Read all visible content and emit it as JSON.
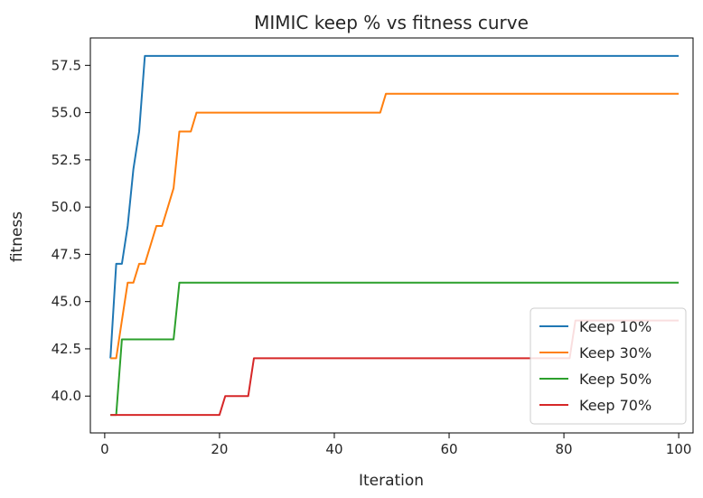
{
  "chart_data": {
    "type": "line",
    "title": "MIMIC keep % vs fitness curve",
    "xlabel": "Iteration",
    "ylabel": "fitness",
    "xlim": [
      -2.5,
      102.5
    ],
    "ylim": [
      38.05,
      58.95
    ],
    "xticks": [
      0,
      20,
      40,
      60,
      80,
      100
    ],
    "yticks": [
      40.0,
      42.5,
      45.0,
      47.5,
      50.0,
      52.5,
      55.0,
      57.5
    ],
    "ytick_labels": [
      "40.0",
      "42.5",
      "45.0",
      "47.5",
      "50.0",
      "52.5",
      "55.0",
      "57.5"
    ],
    "grid": false,
    "legend": "lower-right",
    "series": [
      {
        "name": "Keep 10%",
        "color": "#1f77b4",
        "x": [
          1,
          2,
          3,
          4,
          5,
          6,
          7,
          100
        ],
        "y": [
          42,
          47,
          47,
          49,
          52,
          54,
          58,
          58
        ]
      },
      {
        "name": "Keep 30%",
        "color": "#ff7f0e",
        "x": [
          1,
          2,
          3,
          4,
          5,
          6,
          7,
          8,
          9,
          10,
          11,
          12,
          13,
          14,
          15,
          16,
          48,
          49,
          100
        ],
        "y": [
          42,
          42,
          44,
          46,
          46,
          47,
          47,
          48,
          49,
          49,
          50,
          51,
          54,
          54,
          54,
          55,
          55,
          56,
          56
        ]
      },
      {
        "name": "Keep 50%",
        "color": "#2ca02c",
        "x": [
          1,
          2,
          3,
          12,
          13,
          100
        ],
        "y": [
          39,
          39,
          43,
          43,
          46,
          46
        ]
      },
      {
        "name": "Keep 70%",
        "color": "#d62728",
        "x": [
          1,
          20,
          21,
          25,
          26,
          81,
          82,
          100
        ],
        "y": [
          39,
          39,
          40,
          40,
          42,
          42,
          44,
          44
        ]
      }
    ]
  }
}
